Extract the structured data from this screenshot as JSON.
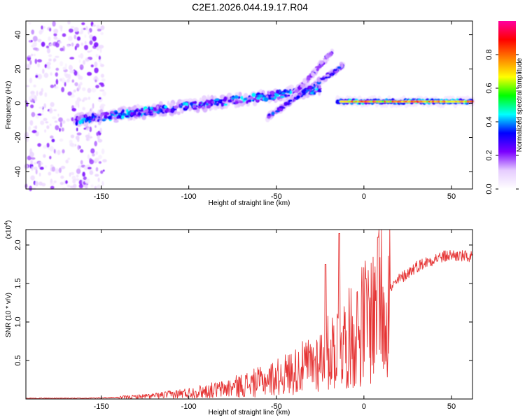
{
  "chart_data": [
    {
      "type": "heatmap",
      "title": "C2E1.2026.044.19.17.R04",
      "xlabel": "Height of straight line (km)",
      "ylabel": "Frequency (Hz)",
      "xlim": [
        -193,
        62
      ],
      "ylim": [
        -50,
        48
      ],
      "xticks": [
        -150,
        -100,
        -50,
        0,
        50
      ],
      "yticks": [
        -40,
        -20,
        0,
        20,
        40
      ],
      "colorbar": {
        "label": "Normalized spectral amplitude",
        "range": [
          0,
          1
        ],
        "ticks": [
          "0.0",
          "0.2",
          "0.4",
          "0.6",
          "0.8"
        ],
        "colormap": [
          "#ffffff",
          "#e6ccff",
          "#7b00ff",
          "#0000ff",
          "#00ffff",
          "#00ff00",
          "#ffff00",
          "#ff8000",
          "#ff0000",
          "#ff00a0"
        ]
      },
      "features": [
        {
          "name": "noise-region",
          "x": [
            -193,
            -148
          ],
          "amplitude": 0.15
        },
        {
          "name": "main-band",
          "x": [
            -165,
            -25
          ],
          "freq_start": -10,
          "freq_end": 8,
          "amplitude": 0.35
        },
        {
          "name": "upper-branch",
          "x": [
            -40,
            -18
          ],
          "freq_start": 5,
          "freq_end": 30,
          "amplitude": 0.2
        },
        {
          "name": "lower-branch",
          "x": [
            -55,
            -12
          ],
          "freq_start": -8,
          "freq_end": 22,
          "amplitude": 0.3
        },
        {
          "name": "stable-band",
          "x": [
            -15,
            62
          ],
          "freq": 1,
          "amplitude": 0.85
        }
      ]
    },
    {
      "type": "line",
      "xlabel": "Height of straight line (km)",
      "ylabel": "SNR (10 * v/v)",
      "scale_label": "(x10",
      "scale_exp": "4",
      "xlim": [
        -193,
        62
      ],
      "ylim": [
        0,
        2.2
      ],
      "xticks": [
        -150,
        -100,
        -50,
        0,
        50
      ],
      "yticks": [
        0.5,
        1.0,
        1.5,
        2.0
      ],
      "ytick_labels": [
        "0.5",
        "1.0",
        "1.5",
        "2.0"
      ],
      "color": "#e53333",
      "series": [
        {
          "name": "SNR trend",
          "x": [
            -193,
            -160,
            -140,
            -120,
            -100,
            -80,
            -60,
            -50,
            -40,
            -30,
            -20,
            -15,
            -10,
            -5,
            0,
            5,
            10,
            20,
            30,
            40,
            50,
            62
          ],
          "values": [
            0.01,
            0.01,
            0.02,
            0.04,
            0.08,
            0.13,
            0.22,
            0.28,
            0.36,
            0.45,
            0.6,
            0.7,
            0.75,
            0.85,
            1.0,
            1.1,
            1.3,
            1.55,
            1.72,
            1.82,
            1.87,
            1.84
          ]
        },
        {
          "name": "SNR peaks",
          "x": [
            -22,
            -14,
            8
          ],
          "values": [
            1.75,
            2.15,
            2.1
          ]
        }
      ]
    }
  ]
}
